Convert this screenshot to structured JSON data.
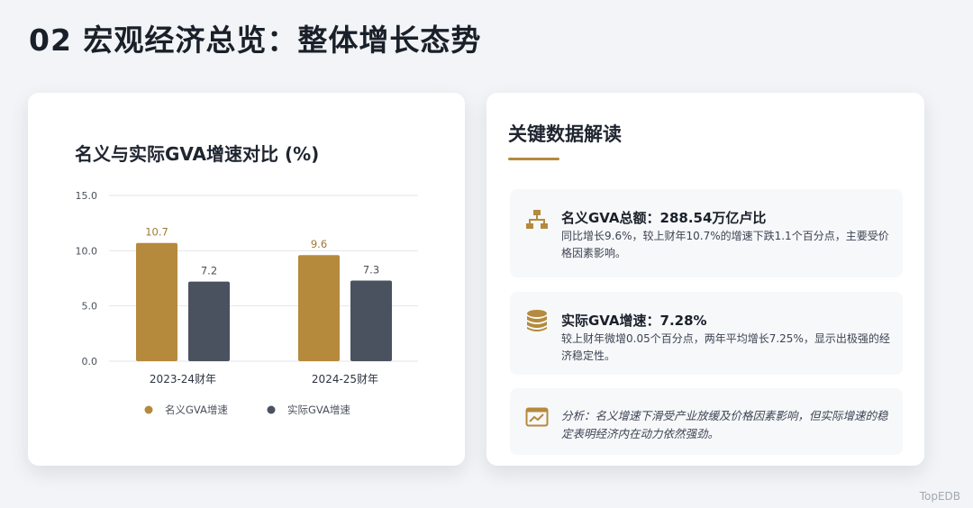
{
  "page": {
    "title": "02 宏观经济总览：整体增长态势",
    "watermark": "TopEDB"
  },
  "chart_data": {
    "type": "bar",
    "title": "名义与实际GVA增速对比 (%)",
    "categories": [
      "2023-24财年",
      "2024-25财年"
    ],
    "series": [
      {
        "name": "名义GVA增速",
        "values": [
          10.7,
          9.6
        ],
        "color": "#b58a3c"
      },
      {
        "name": "实际GVA增速",
        "values": [
          7.2,
          7.3
        ],
        "color": "#4a5260"
      }
    ],
    "yticks": [
      "0.0",
      "5.0",
      "10.0",
      "15.0"
    ],
    "ylim": [
      0,
      15
    ],
    "grid": true,
    "legend": "bottom"
  },
  "panel": {
    "title": "关键数据解读",
    "accent": "#b58a3c",
    "items": [
      {
        "icon": "hierarchy-icon",
        "heading": "名义GVA总额：288.54万亿卢比",
        "body": "同比增长9.6%，较上财年10.7%的增速下跌1.1个百分点，主要受价格因素影响。"
      },
      {
        "icon": "coin-stack-icon",
        "heading": "实际GVA增速：7.28%",
        "body": "较上财年微增0.05个百分点，两年平均增长7.25%，显示出极强的经济稳定性。"
      },
      {
        "icon": "chart-window-icon",
        "note": "分析：名义增速下滑受产业放缓及价格因素影响，但实际增速的稳定表明经济内在动力依然强劲。"
      }
    ]
  }
}
